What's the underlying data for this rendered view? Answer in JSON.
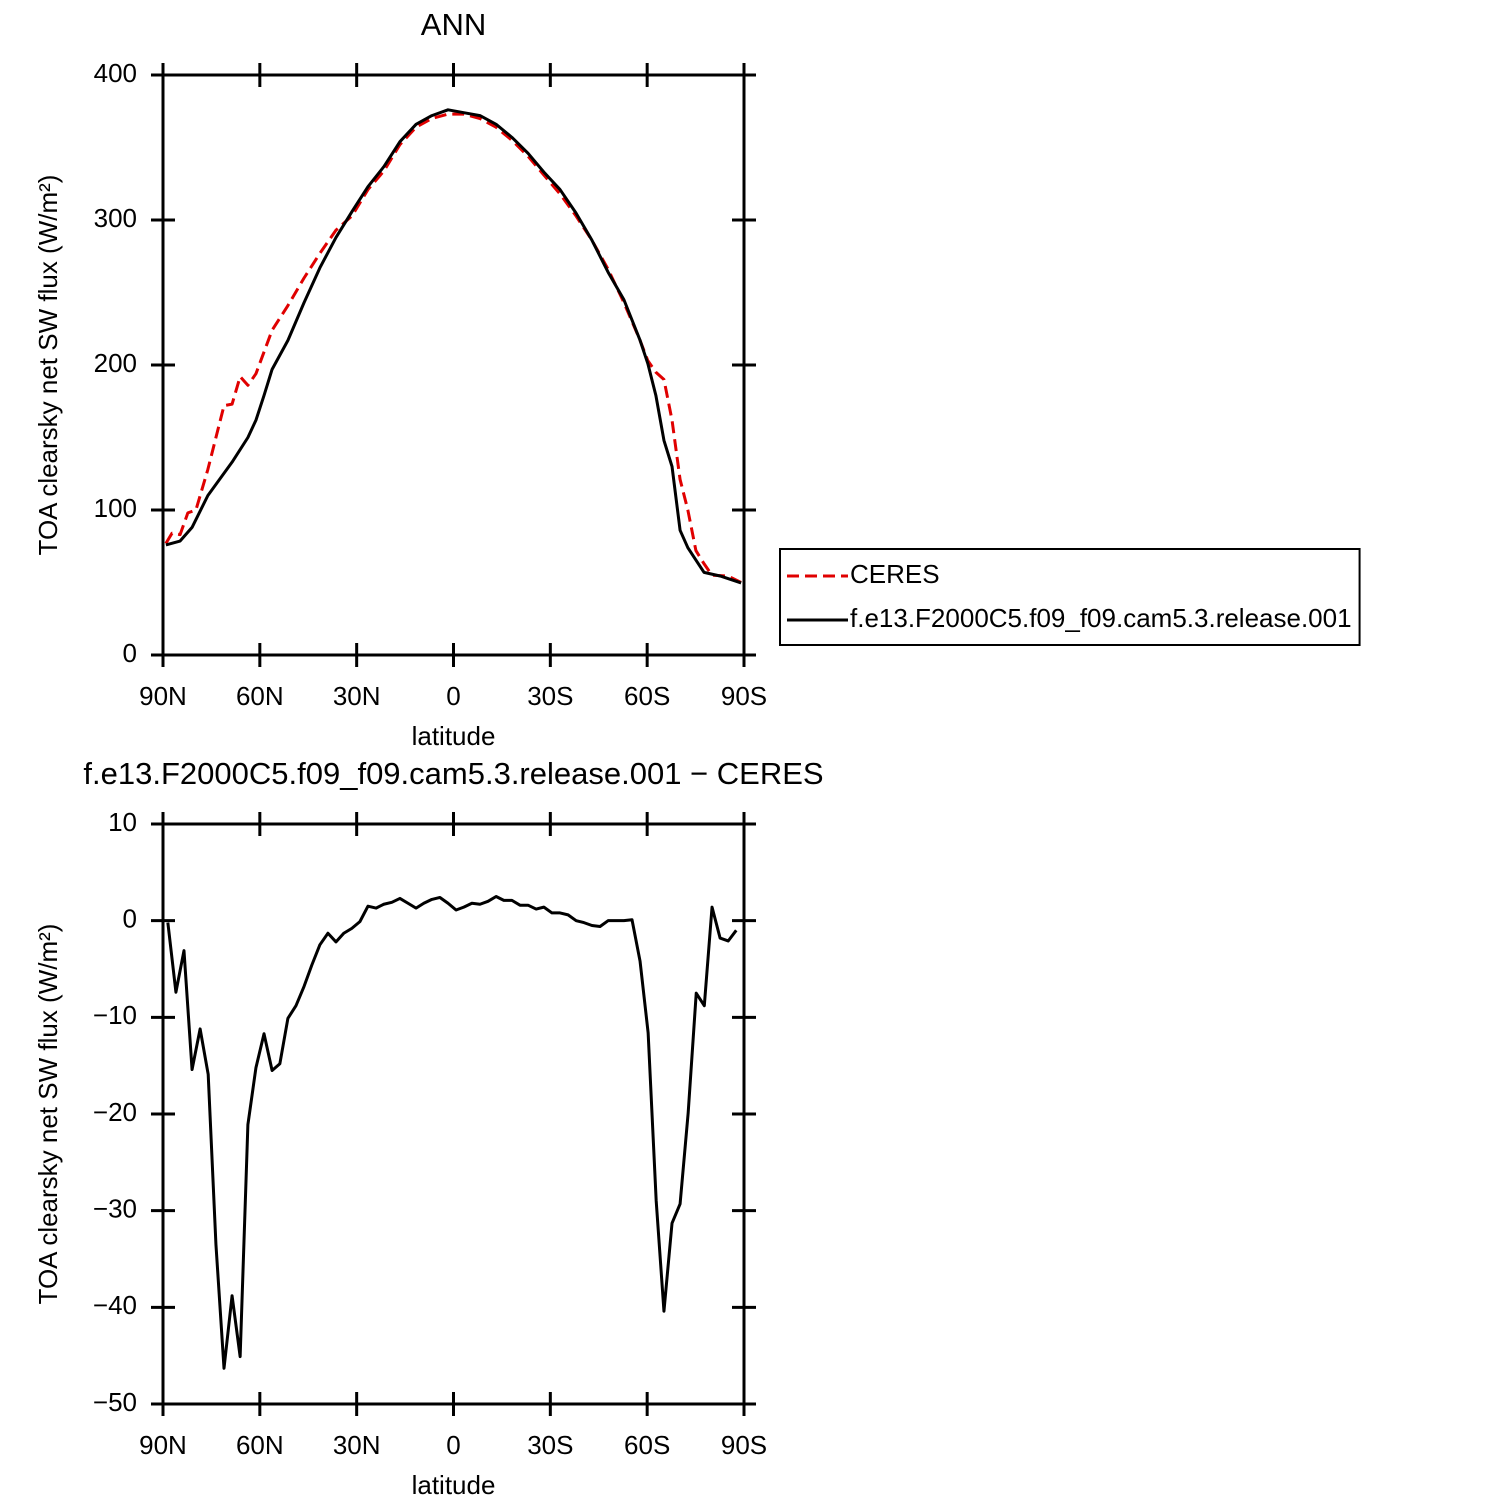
{
  "chart_data": [
    {
      "type": "line",
      "title": "ANN",
      "xlabel": "latitude",
      "ylabel": "TOA clearsky net SW flux (W/m²)",
      "xlim": [
        90,
        -90
      ],
      "xticks": [
        {
          "value": 90,
          "label": "90N"
        },
        {
          "value": 60,
          "label": "60N"
        },
        {
          "value": 30,
          "label": "30N"
        },
        0,
        {
          "value": -30,
          "label": "30S"
        },
        {
          "value": -60,
          "label": "60S"
        },
        {
          "value": -90,
          "label": "90S"
        }
      ],
      "ylim": [
        0,
        400
      ],
      "yticks": [
        0,
        100,
        200,
        300,
        400
      ],
      "legend": "right",
      "series": [
        {
          "name": "CERES",
          "color": "#e00000",
          "linestyle": "dashed",
          "x": [
            89.1,
            87.2,
            84.7,
            82.3,
            79.8,
            76.1,
            71.1,
            68.6,
            66.1,
            63.7,
            61.2,
            56.2,
            51.3,
            46.3,
            41.4,
            36.4,
            31.4,
            26.5,
            21.5,
            16.6,
            11.6,
            6.7,
            1.7,
            -3.2,
            -8.2,
            -13.2,
            -18.1,
            -23.1,
            -28.0,
            -33.0,
            -37.9,
            -42.9,
            -47.9,
            -52.8,
            -57.8,
            -60.2,
            -62.7,
            -65.2,
            -67.7,
            -70.2,
            -72.6,
            -75.1,
            -77.6,
            -80.1,
            -85.0,
            -89.1
          ],
          "values": [
            77,
            84,
            83,
            98,
            100,
            128,
            172,
            173,
            192,
            186,
            194,
            224,
            241,
            260,
            277,
            293,
            303,
            321,
            334,
            352,
            364,
            370,
            373,
            373,
            370,
            364,
            355,
            344,
            331,
            318,
            303,
            286,
            266,
            243,
            217,
            203,
            195,
            190,
            162,
            121,
            100,
            72,
            63,
            55,
            54.5,
            50
          ]
        },
        {
          "name": "f.e13.F2000C5.f09_f09.cam5.3.release.001",
          "color": "#000000",
          "linestyle": "solid",
          "x": [
            89.1,
            84.7,
            81.0,
            76.1,
            68.6,
            63.7,
            61.2,
            58.7,
            56.2,
            51.3,
            46.3,
            41.4,
            36.4,
            31.4,
            26.5,
            21.5,
            16.6,
            11.6,
            6.7,
            1.7,
            -3.2,
            -8.2,
            -13.2,
            -18.1,
            -23.1,
            -28.0,
            -33.0,
            -37.9,
            -42.9,
            -47.9,
            -52.8,
            -57.8,
            -60.2,
            -62.7,
            -65.2,
            -67.7,
            -70.2,
            -72.6,
            -75.1,
            -77.6,
            -82.6,
            -89.1
          ],
          "values": [
            75.9,
            78.6,
            88,
            110,
            133,
            150,
            162,
            179,
            197,
            217,
            243,
            267,
            288,
            306,
            323,
            337,
            354,
            366,
            372,
            376,
            374,
            372,
            366,
            357,
            346,
            333,
            321,
            305,
            286,
            264,
            245,
            217,
            201,
            179,
            148,
            130,
            86,
            74,
            65.5,
            57,
            54.5,
            49.7
          ]
        }
      ]
    },
    {
      "type": "line",
      "title": "f.e13.F2000C5.f09_f09.cam5.3.release.001 − CERES",
      "xlabel": "latitude",
      "ylabel": "TOA clearsky net SW flux (W/m²)",
      "xlim": [
        90,
        -90
      ],
      "xticks": [
        {
          "value": 90,
          "label": "90N"
        },
        {
          "value": 60,
          "label": "60N"
        },
        {
          "value": 30,
          "label": "30N"
        },
        0,
        {
          "value": -30,
          "label": "30S"
        },
        {
          "value": -60,
          "label": "60S"
        },
        {
          "value": -90,
          "label": "90S"
        }
      ],
      "ylim": [
        -50,
        10
      ],
      "yticks": [
        {
          "value": -50,
          "label": "−50"
        },
        {
          "value": -40,
          "label": "−40"
        },
        {
          "value": -30,
          "label": "−30"
        },
        {
          "value": -20,
          "label": "−20"
        },
        {
          "value": -10,
          "label": "−10"
        },
        0,
        10
      ],
      "series": [
        {
          "color": "#000000",
          "linestyle": "solid",
          "x": [
            88.5,
            86.0,
            83.5,
            81.0,
            78.5,
            76.0,
            73.6,
            71.1,
            68.6,
            66.1,
            63.7,
            61.2,
            58.7,
            56.2,
            53.8,
            51.3,
            48.8,
            46.3,
            43.9,
            41.4,
            38.9,
            36.4,
            34.0,
            31.5,
            29.0,
            26.5,
            24.0,
            21.6,
            19.1,
            16.6,
            14.1,
            11.6,
            9.2,
            6.7,
            4.2,
            1.7,
            -0.8,
            -3.2,
            -5.7,
            -8.2,
            -10.7,
            -13.2,
            -15.6,
            -18.1,
            -20.6,
            -23.1,
            -25.6,
            -28.0,
            -30.5,
            -33.0,
            -35.5,
            -38.0,
            -40.4,
            -42.9,
            -45.4,
            -47.9,
            -50.4,
            -52.8,
            -55.3,
            -57.8,
            -60.3,
            -62.8,
            -65.2,
            -67.7,
            -70.2,
            -72.7,
            -75.2,
            -77.7,
            -80.1,
            -82.6,
            -85.1,
            -87.6
          ],
          "values": [
            -0.2,
            -7.4,
            -3.1,
            -15.4,
            -11.2,
            -15.9,
            -33.5,
            -46.3,
            -38.8,
            -45.1,
            -21.1,
            -15.2,
            -11.7,
            -15.5,
            -14.8,
            -10.1,
            -8.8,
            -6.8,
            -4.6,
            -2.5,
            -1.3,
            -2.2,
            -1.3,
            -0.8,
            -0.1,
            1.5,
            1.3,
            1.7,
            1.9,
            2.3,
            1.8,
            1.3,
            1.8,
            2.2,
            2.4,
            1.8,
            1.1,
            1.4,
            1.8,
            1.7,
            2.0,
            2.5,
            2.1,
            2.1,
            1.6,
            1.6,
            1.2,
            1.4,
            0.8,
            0.8,
            0.6,
            0.0,
            -0.2,
            -0.5,
            -0.6,
            0.0,
            0.0,
            0.0,
            0.1,
            -4.2,
            -11.6,
            -29,
            -40.4,
            -31.3,
            -29.3,
            -19.9,
            -7.5,
            -8.8,
            1.4,
            -1.8,
            -2.1,
            -1.0
          ]
        }
      ]
    }
  ]
}
